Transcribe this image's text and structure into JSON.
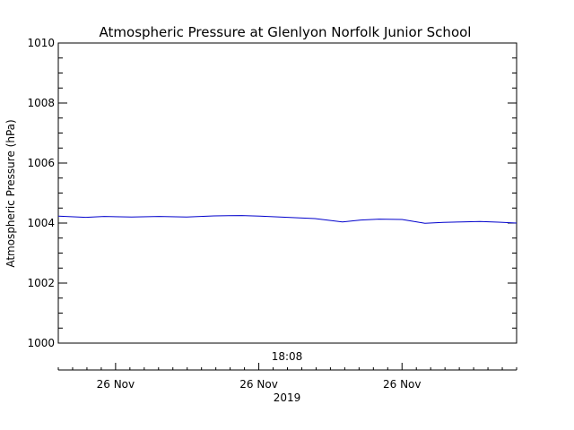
{
  "chart_data": {
    "type": "line",
    "title": "Atmospheric Pressure at Glenlyon Norfolk Junior School",
    "ylabel": "Atmospheric Pressure (hPa)",
    "xlabel_time": "18:08",
    "xlabel_year": "2019",
    "ylim": [
      1000,
      1010
    ],
    "y_major_ticks": [
      1000,
      1002,
      1004,
      1006,
      1008,
      1010
    ],
    "y_tick_labels": [
      "1000",
      "1002",
      "1004",
      "1006",
      "1008",
      "1010"
    ],
    "y_minor_step": 0.5,
    "xlim": [
      0,
      1
    ],
    "x_date_ticks": [
      {
        "pos": 0.125,
        "label": "26 Nov"
      },
      {
        "pos": 0.4375,
        "label": "26 Nov"
      },
      {
        "pos": 0.75,
        "label": "26 Nov"
      }
    ],
    "x_minor_step": 0.03125,
    "series": [
      {
        "name": "Pressure",
        "color": "#0000cc",
        "x": [
          0.0,
          0.06,
          0.1,
          0.16,
          0.22,
          0.28,
          0.34,
          0.4,
          0.44,
          0.5,
          0.56,
          0.62,
          0.66,
          0.7,
          0.75,
          0.8,
          0.84,
          0.88,
          0.92,
          0.96,
          1.0
        ],
        "y": [
          1004.23,
          1004.19,
          1004.22,
          1004.2,
          1004.22,
          1004.2,
          1004.24,
          1004.25,
          1004.23,
          1004.19,
          1004.15,
          1004.04,
          1004.1,
          1004.13,
          1004.12,
          1003.99,
          1004.02,
          1004.04,
          1004.05,
          1004.03,
          1004.0
        ]
      }
    ]
  }
}
